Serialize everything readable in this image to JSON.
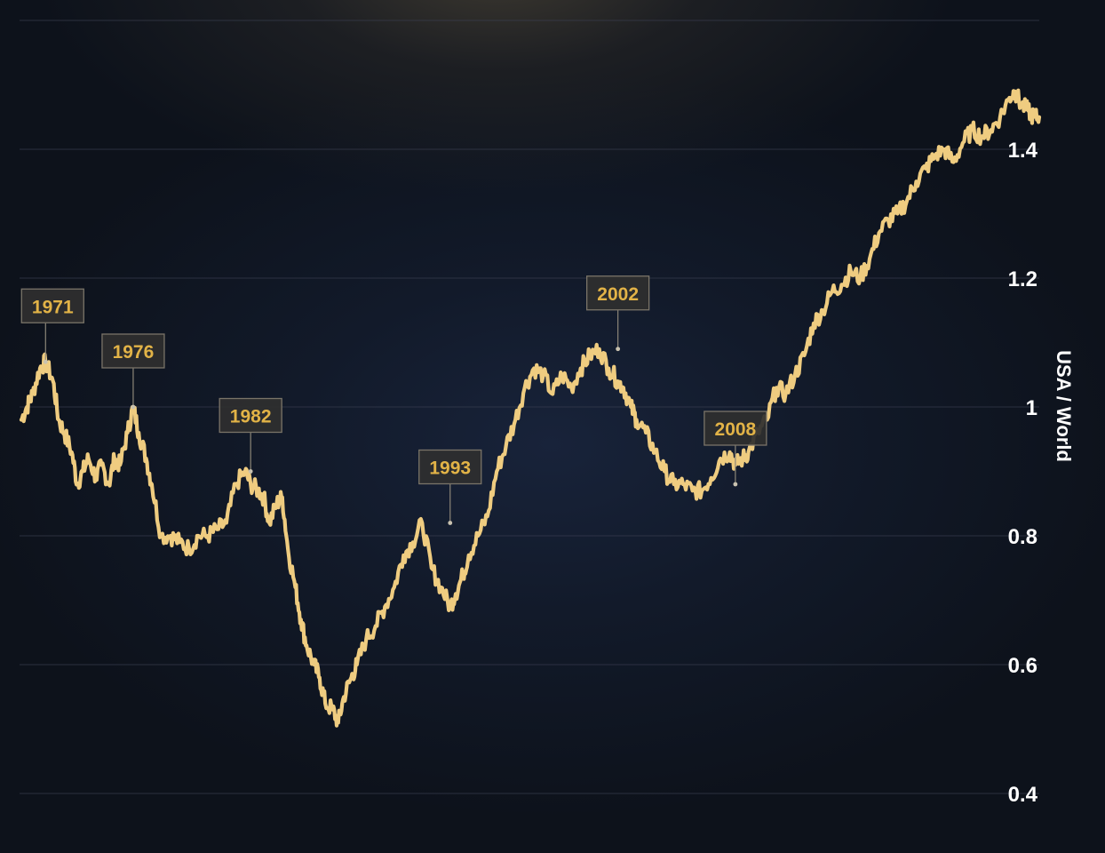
{
  "chart_data": {
    "type": "line",
    "ylabel": "USA / World",
    "ylim": [
      0.4,
      1.5
    ],
    "y_ticks": [
      "0.4",
      "0.6",
      "0.8",
      "1",
      "1.2",
      "1.4"
    ],
    "grid": true,
    "line_color": "#efcc80",
    "annotation_color": "#e2b347",
    "series": [
      {
        "x": [
          1970.0,
          1970.3,
          1970.6,
          1971.0,
          1971.3,
          1971.7,
          1972.0,
          1972.3,
          1972.7,
          1973.0,
          1973.3,
          1973.6,
          1974.0,
          1974.3,
          1974.7,
          1975.0,
          1975.3,
          1975.7,
          1976.0,
          1976.3,
          1976.7,
          1977.0,
          1977.5,
          1978.0,
          1978.5,
          1979.0,
          1979.5,
          1980.0,
          1980.5,
          1981.0,
          1981.5,
          1982.0,
          1982.3,
          1982.7,
          1983.0,
          1983.3,
          1983.7,
          1984.0,
          1984.3,
          1984.7,
          1985.0,
          1985.3,
          1985.7,
          1986.0,
          1986.3,
          1986.7,
          1987.0,
          1987.3,
          1987.7,
          1988.0,
          1988.5,
          1989.0,
          1989.5,
          1990.0,
          1990.5,
          1991.0,
          1991.5,
          1992.0,
          1992.5,
          1993.0,
          1993.3,
          1993.7,
          1994.0,
          1994.5,
          1995.0,
          1995.5,
          1996.0,
          1996.5,
          1997.0,
          1997.5,
          1998.0,
          1998.5,
          1999.0,
          1999.5,
          2000.0,
          2000.5,
          2001.0,
          2001.5,
          2002.0,
          2002.3,
          2002.7,
          2003.0,
          2003.5,
          2004.0,
          2004.5,
          2005.0,
          2005.5,
          2006.0,
          2006.5,
          2007.0,
          2007.5,
          2008.0,
          2008.3,
          2008.7,
          2009.0,
          2009.5,
          2010.0,
          2010.5,
          2011.0,
          2011.5,
          2012.0,
          2012.5,
          2013.0,
          2013.5,
          2014.0,
          2014.5,
          2015.0,
          2015.5,
          2016.0,
          2016.5,
          2017.0,
          2017.5,
          2018.0,
          2018.5,
          2019.0,
          2019.5,
          2020.0,
          2020.5,
          2021.0,
          2021.5,
          2022.0,
          2022.5,
          2023.0,
          2023.3,
          2023.6,
          2024.0,
          2024.3,
          2024.6
        ],
        "y": [
          0.98,
          1.0,
          1.02,
          1.06,
          1.07,
          1.04,
          0.98,
          0.96,
          0.93,
          0.88,
          0.9,
          0.92,
          0.89,
          0.91,
          0.88,
          0.92,
          0.91,
          0.96,
          1.0,
          0.96,
          0.92,
          0.88,
          0.8,
          0.8,
          0.79,
          0.78,
          0.8,
          0.8,
          0.81,
          0.82,
          0.88,
          0.9,
          0.88,
          0.87,
          0.86,
          0.82,
          0.85,
          0.86,
          0.78,
          0.72,
          0.67,
          0.63,
          0.6,
          0.58,
          0.54,
          0.53,
          0.51,
          0.55,
          0.58,
          0.6,
          0.64,
          0.66,
          0.69,
          0.72,
          0.77,
          0.79,
          0.82,
          0.75,
          0.72,
          0.69,
          0.71,
          0.74,
          0.77,
          0.8,
          0.83,
          0.9,
          0.94,
          0.98,
          1.03,
          1.06,
          1.05,
          1.02,
          1.05,
          1.03,
          1.06,
          1.08,
          1.09,
          1.06,
          1.04,
          1.03,
          1.0,
          0.98,
          0.96,
          0.93,
          0.9,
          0.88,
          0.88,
          0.87,
          0.87,
          0.89,
          0.92,
          0.93,
          0.91,
          0.92,
          0.93,
          0.96,
          0.98,
          1.03,
          1.02,
          1.05,
          1.08,
          1.13,
          1.15,
          1.18,
          1.19,
          1.21,
          1.2,
          1.23,
          1.27,
          1.29,
          1.3,
          1.32,
          1.35,
          1.37,
          1.39,
          1.4,
          1.38,
          1.41,
          1.43,
          1.42,
          1.43,
          1.45,
          1.48,
          1.49,
          1.47,
          1.46,
          1.45,
          1.45
        ]
      }
    ],
    "annotations": [
      {
        "label": "1971",
        "x": 1971.3,
        "y": 1.07
      },
      {
        "label": "1976",
        "x": 1976.0,
        "y": 1.0
      },
      {
        "label": "1982",
        "x": 1982.3,
        "y": 0.9
      },
      {
        "label": "1993",
        "x": 1993.0,
        "y": 0.82
      },
      {
        "label": "2002",
        "x": 2002.0,
        "y": 1.09
      },
      {
        "label": "2008",
        "x": 2008.3,
        "y": 0.88
      }
    ]
  }
}
